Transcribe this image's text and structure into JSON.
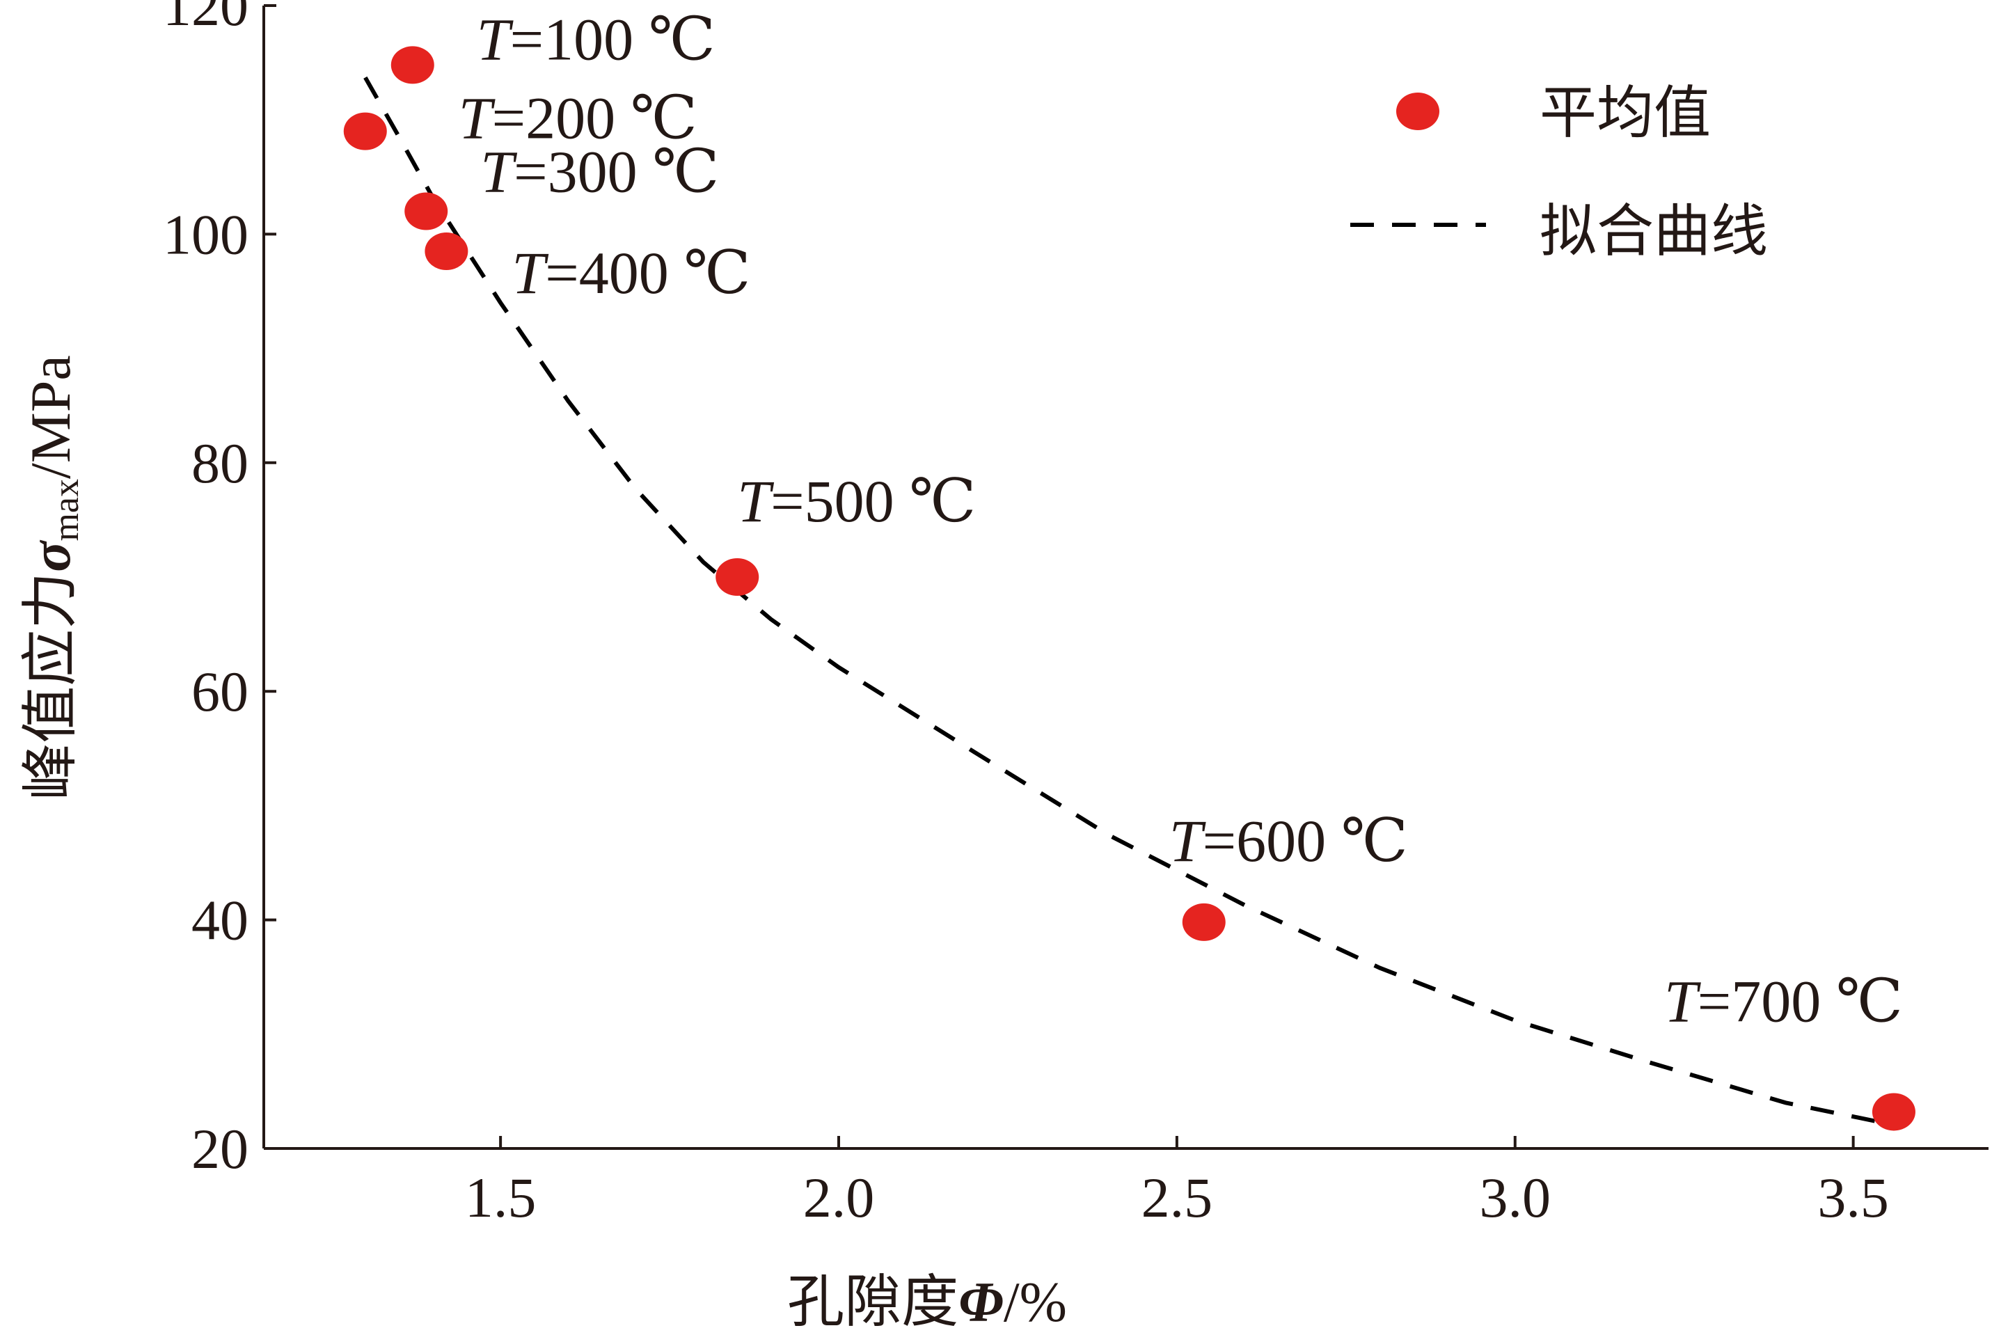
{
  "chart_data": {
    "type": "scatter",
    "xlabel": {
      "prefix": "孔隙度",
      "symbol": "Φ",
      "unit": "/%"
    },
    "ylabel": {
      "prefix": "峰值应力",
      "symbol": "σ",
      "sub": "max",
      "unit": "/MPa"
    },
    "xlim": [
      1.15,
      3.7
    ],
    "ylim": [
      20,
      120
    ],
    "xticks": [
      1.5,
      2.0,
      2.5,
      3.0,
      3.5
    ],
    "xtick_labels": [
      "1.5",
      "2.0",
      "2.5",
      "3.0",
      "3.5"
    ],
    "yticks": [
      20,
      40,
      60,
      80,
      100,
      120
    ],
    "ytick_labels": [
      "20",
      "40",
      "60",
      "80",
      "100",
      "120"
    ],
    "grid": false,
    "legend_position": "top-right",
    "colors": {
      "points": "#e52420",
      "fit": "#000000",
      "axis": "#231815"
    },
    "series": [
      {
        "name": "平均值",
        "kind": "scatter",
        "points": [
          {
            "x": 1.37,
            "y": 114.8,
            "label": "=100 ℃"
          },
          {
            "x": 1.3,
            "y": 109.0,
            "label": "=200 ℃"
          },
          {
            "x": 1.39,
            "y": 102.0,
            "label": "=300 ℃"
          },
          {
            "x": 1.42,
            "y": 98.5,
            "label": "=400 ℃"
          },
          {
            "x": 1.85,
            "y": 70.0,
            "label": "=500 ℃"
          },
          {
            "x": 2.54,
            "y": 39.8,
            "label": "=600 ℃"
          },
          {
            "x": 3.56,
            "y": 23.2,
            "label": "=700 ℃"
          }
        ],
        "label_var": "T"
      },
      {
        "name": "拟合曲线",
        "kind": "line",
        "x": [
          1.3,
          1.35,
          1.4,
          1.45,
          1.5,
          1.6,
          1.7,
          1.8,
          1.9,
          2.0,
          2.2,
          2.4,
          2.6,
          2.8,
          3.0,
          3.2,
          3.4,
          3.54
        ],
        "y": [
          113.7,
          108.5,
          103.2,
          98.6,
          94.0,
          85.4,
          77.7,
          71.3,
          66.3,
          62.1,
          54.7,
          47.4,
          41.3,
          35.8,
          31.2,
          27.5,
          24.0,
          22.3
        ]
      }
    ]
  }
}
